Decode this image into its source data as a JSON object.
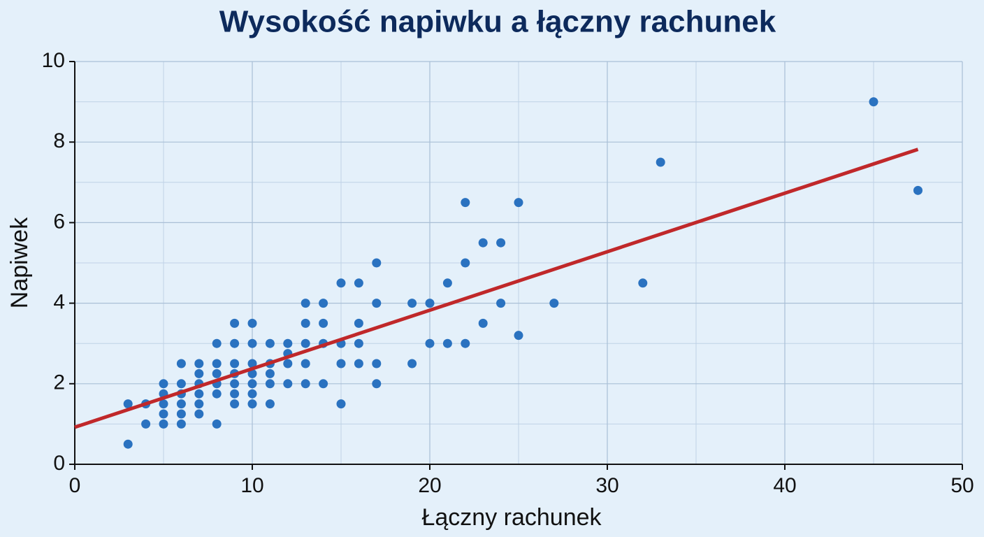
{
  "chart_data": {
    "type": "scatter",
    "title": "Wysokość napiwku a łączny rachunek",
    "x_label": "Łączny rachunek",
    "y_label": "Napiwek",
    "xlim": [
      0,
      50
    ],
    "ylim": [
      0,
      10
    ],
    "xticks": [
      0,
      10,
      20,
      30,
      40,
      50
    ],
    "yticks": [
      0,
      2,
      4,
      6,
      8,
      10
    ],
    "xminorticks": [
      5,
      15,
      25,
      35,
      45
    ],
    "yminorticks": [
      1,
      3,
      5,
      7,
      9
    ],
    "grid": true,
    "series": [
      {
        "color": "#2a72c0",
        "x": [
          3,
          3,
          4,
          4,
          5,
          5,
          5,
          5,
          5,
          6,
          6,
          6,
          6,
          6,
          6,
          7,
          7,
          7,
          7,
          7,
          7,
          8,
          8,
          8,
          8,
          8,
          8,
          9,
          9,
          9,
          9,
          9,
          9,
          9,
          10,
          10,
          10,
          10,
          10,
          10,
          10,
          11,
          11,
          11,
          11,
          11,
          12,
          12,
          12,
          12,
          13,
          13,
          13,
          13,
          13,
          14,
          14,
          14,
          14,
          15,
          15,
          15,
          15,
          16,
          16,
          16,
          16,
          17,
          17,
          17,
          17,
          19,
          19,
          20,
          20,
          21,
          21,
          22,
          22,
          22,
          23,
          23,
          24,
          24,
          25,
          25,
          27,
          32,
          33,
          45,
          47.5
        ],
        "values": [
          1.5,
          0.5,
          1.5,
          1,
          2,
          1.75,
          1.5,
          1.25,
          1,
          2.5,
          2,
          1.75,
          1.5,
          1.25,
          1,
          2.5,
          2.25,
          2,
          1.75,
          1.5,
          1.25,
          3,
          2.5,
          2.25,
          2,
          1.75,
          1,
          3.5,
          3,
          2.5,
          2.25,
          2,
          1.75,
          1.5,
          3.5,
          3,
          2.5,
          2.25,
          2,
          1.75,
          1.5,
          3,
          2.5,
          2.25,
          2,
          1.5,
          3,
          2.75,
          2.5,
          2,
          4,
          3.5,
          3,
          2.5,
          2,
          4,
          3.5,
          3,
          2,
          4.5,
          3,
          2.5,
          1.5,
          4.5,
          3.5,
          3,
          2.5,
          5,
          4,
          2.5,
          2,
          4,
          2.5,
          4,
          3,
          4.5,
          3,
          6.5,
          5,
          3,
          5.5,
          3.5,
          5.5,
          4,
          6.5,
          3.2,
          4,
          4.5,
          7.5,
          9,
          6.8
        ]
      }
    ],
    "trendline": {
      "color": "#c0282a",
      "x": [
        0,
        47.5
      ],
      "values": [
        0.92,
        7.82
      ]
    }
  }
}
